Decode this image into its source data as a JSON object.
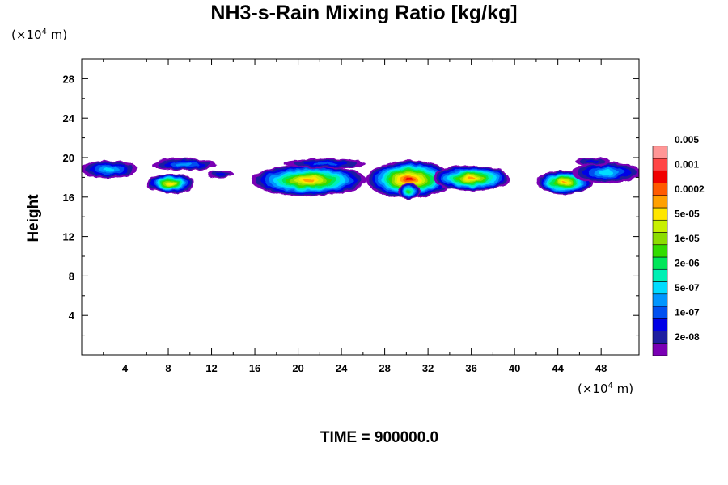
{
  "chart_data": {
    "type": "heatmap",
    "title": "NH3-s-Rain Mixing Ratio [kg/kg]",
    "ylabel": "Height",
    "xunit": "(×10⁴ m)",
    "yunit": "(×10⁴ m)",
    "xlim": [
      0,
      51.5
    ],
    "ylim": [
      0,
      30
    ],
    "xticks": [
      4,
      8,
      12,
      16,
      20,
      24,
      28,
      32,
      36,
      40,
      44,
      48
    ],
    "yticks": [
      4,
      8,
      12,
      16,
      20,
      24,
      28
    ],
    "footer": "TIME = 900000.0",
    "colorbar": {
      "colors": [
        "#7a00b4",
        "#1e1ea0",
        "#0000e6",
        "#0050f0",
        "#0096ff",
        "#00dcff",
        "#00f0b4",
        "#00e65a",
        "#32dc00",
        "#8cdc00",
        "#c8f000",
        "#ffe600",
        "#ffa000",
        "#ff5a00",
        "#f00000",
        "#ff4646",
        "#ff9696"
      ],
      "labels": [
        "2e-08",
        "1e-07",
        "5e-07",
        "2e-06",
        "1e-05",
        "5e-05",
        "0.0002",
        "0.001",
        "0.005"
      ]
    },
    "cloud_regions": [
      {
        "x_center": 2.5,
        "y_center": 18.8,
        "x_halfwidth": 2.6,
        "y_halfwidth": 0.9,
        "peak_level": 5
      },
      {
        "x_center": 9.5,
        "y_center": 19.3,
        "x_halfwidth": 3.0,
        "y_halfwidth": 0.6,
        "peak_level": 4
      },
      {
        "x_center": 8.2,
        "y_center": 17.4,
        "x_halfwidth": 2.2,
        "y_halfwidth": 1.0,
        "peak_level": 11
      },
      {
        "x_center": 12.8,
        "y_center": 18.3,
        "x_halfwidth": 1.2,
        "y_halfwidth": 0.4,
        "peak_level": 2
      },
      {
        "x_center": 21.0,
        "y_center": 17.7,
        "x_halfwidth": 5.3,
        "y_halfwidth": 1.6,
        "peak_level": 12
      },
      {
        "x_center": 22.5,
        "y_center": 19.4,
        "x_halfwidth": 3.8,
        "y_halfwidth": 0.5,
        "peak_level": 3
      },
      {
        "x_center": 30.3,
        "y_center": 17.8,
        "x_halfwidth": 4.0,
        "y_halfwidth": 1.9,
        "peak_level": 14
      },
      {
        "x_center": 30.2,
        "y_center": 16.6,
        "x_halfwidth": 1.0,
        "y_halfwidth": 0.8,
        "peak_level": 8
      },
      {
        "x_center": 36.0,
        "y_center": 17.9,
        "x_halfwidth": 3.6,
        "y_halfwidth": 1.3,
        "peak_level": 12
      },
      {
        "x_center": 44.6,
        "y_center": 17.5,
        "x_halfwidth": 2.6,
        "y_halfwidth": 1.2,
        "peak_level": 12
      },
      {
        "x_center": 48.5,
        "y_center": 18.5,
        "x_halfwidth": 3.2,
        "y_halfwidth": 1.1,
        "peak_level": 5
      },
      {
        "x_center": 47.2,
        "y_center": 19.6,
        "x_halfwidth": 1.6,
        "y_halfwidth": 0.4,
        "peak_level": 2
      }
    ]
  }
}
